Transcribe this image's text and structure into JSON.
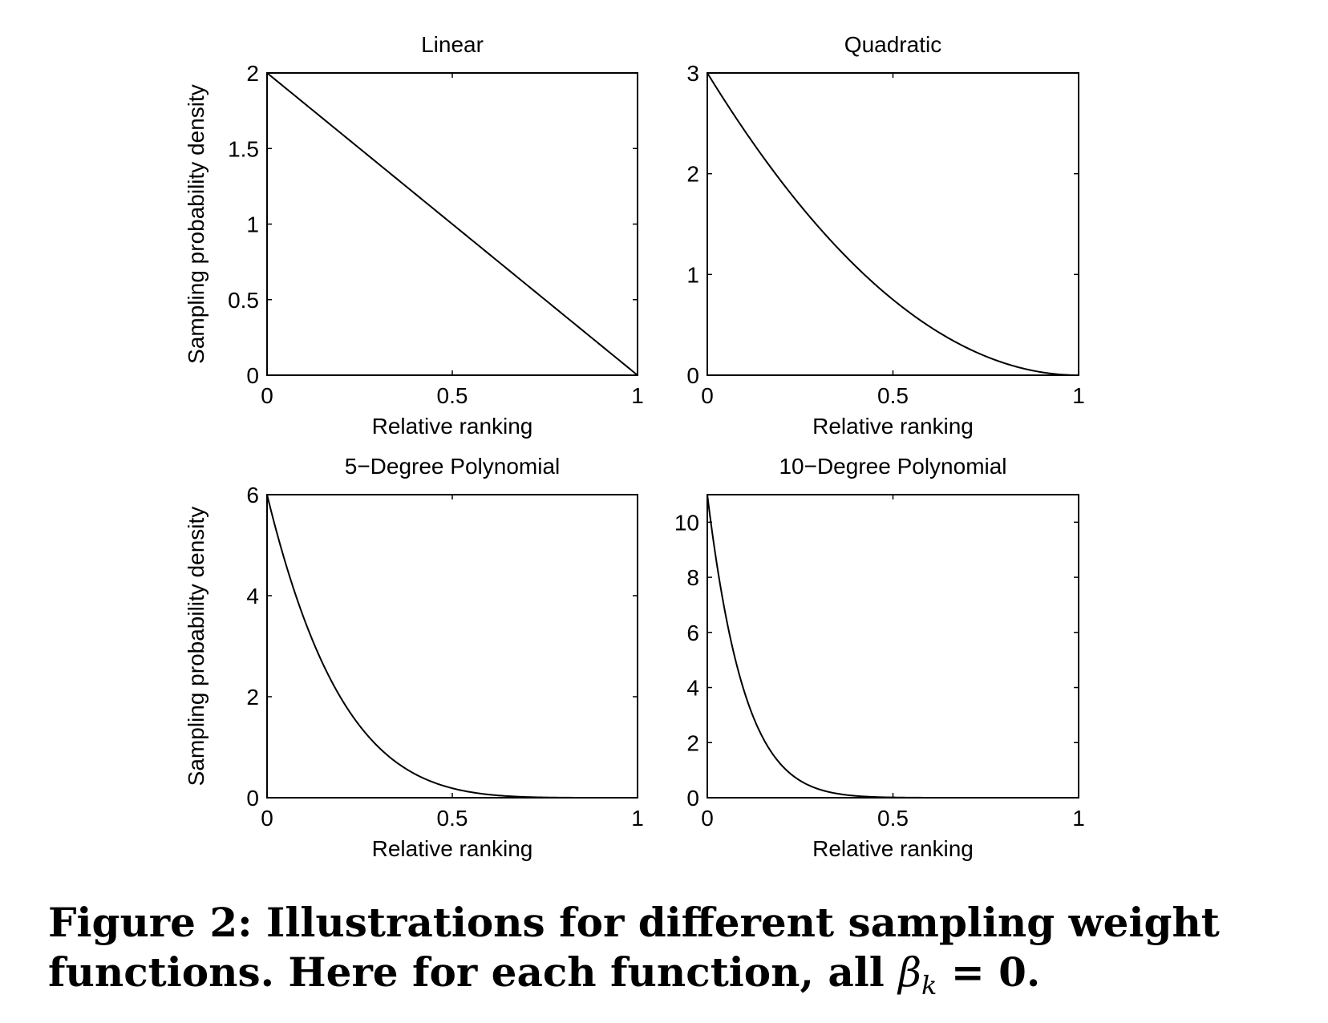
{
  "chart_data": [
    {
      "type": "line",
      "title": "Linear",
      "xlabel": "Relative ranking",
      "ylabel": "Sampling probability density",
      "xlim": [
        0,
        1
      ],
      "ylim": [
        0,
        2
      ],
      "xticks": [
        "0",
        "0.5",
        "1"
      ],
      "yticks": [
        "0",
        "0.5",
        "1",
        "1.5",
        "2"
      ],
      "degree": 1,
      "x": [
        0,
        0.25,
        0.5,
        0.75,
        1
      ],
      "y": [
        2,
        1.5,
        1,
        0.5,
        0
      ]
    },
    {
      "type": "line",
      "title": "Quadratic",
      "xlabel": "Relative ranking",
      "ylabel": "",
      "xlim": [
        0,
        1
      ],
      "ylim": [
        0,
        3
      ],
      "xticks": [
        "0",
        "0.5",
        "1"
      ],
      "yticks": [
        "0",
        "1",
        "2",
        "3"
      ],
      "degree": 2,
      "x": [
        0,
        0.25,
        0.5,
        0.75,
        1
      ],
      "y": [
        3,
        1.69,
        0.75,
        0.19,
        0
      ]
    },
    {
      "type": "line",
      "title": "5−Degree Polynomial",
      "xlabel": "Relative ranking",
      "ylabel": "Sampling probability density",
      "xlim": [
        0,
        1
      ],
      "ylim": [
        0,
        6
      ],
      "xticks": [
        "0",
        "0.5",
        "1"
      ],
      "yticks": [
        "0",
        "2",
        "4",
        "6"
      ],
      "degree": 5,
      "x": [
        0,
        0.1,
        0.2,
        0.3,
        0.5,
        0.7,
        1
      ],
      "y": [
        6,
        3.54,
        1.97,
        1.01,
        0.19,
        0.01,
        0
      ]
    },
    {
      "type": "line",
      "title": "10−Degree Polynomial",
      "xlabel": "Relative ranking",
      "ylabel": "",
      "xlim": [
        0,
        1
      ],
      "ylim": [
        0,
        11
      ],
      "xticks": [
        "0",
        "0.5",
        "1"
      ],
      "yticks": [
        "0",
        "2",
        "4",
        "6",
        "8",
        "10"
      ],
      "degree": 10,
      "x": [
        0,
        0.1,
        0.2,
        0.3,
        0.5,
        1
      ],
      "y": [
        11,
        3.84,
        1.18,
        0.31,
        0.01,
        0
      ]
    }
  ],
  "caption": {
    "line1": "Figure 2: Illustrations for different sampling weight",
    "line2_prefix": "functions. Here for each function, all ",
    "beta": "β",
    "sub": "k",
    "line2_suffix": " = 0."
  }
}
